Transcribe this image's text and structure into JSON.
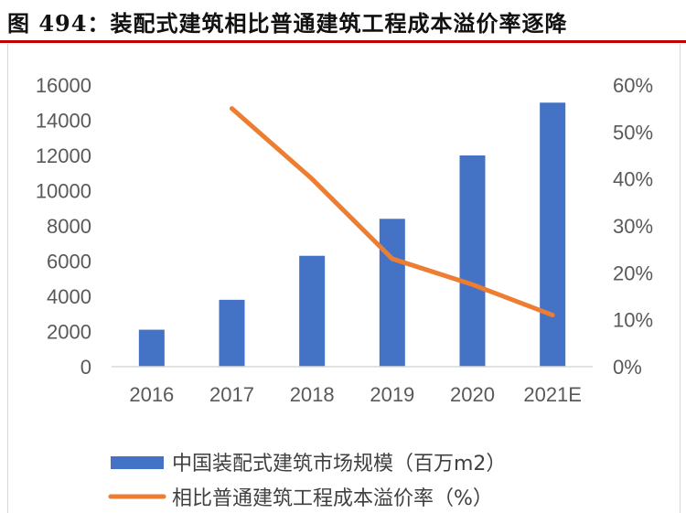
{
  "header": {
    "title": "图 494：装配式建筑相比普通建筑工程成本溢价率逐降",
    "rule_color": "#c00000"
  },
  "chart_data": {
    "type": "bar+line",
    "categories": [
      "2016",
      "2017",
      "2018",
      "2019",
      "2020",
      "2021E"
    ],
    "series": [
      {
        "name": "中国装配式建筑市场规模（百万m2）",
        "type": "bar",
        "axis": "left",
        "color": "#4472c4",
        "values": [
          2100,
          3800,
          6300,
          8400,
          12000,
          15000
        ]
      },
      {
        "name": "相比普通建筑工程成本溢价率（%）",
        "type": "line",
        "axis": "right",
        "color": "#ed7d31",
        "values": [
          null,
          55,
          40,
          23,
          17.5,
          11
        ]
      }
    ],
    "left_axis": {
      "min": 0,
      "max": 16000,
      "ticks": [
        "0",
        "2000",
        "4000",
        "6000",
        "8000",
        "10000",
        "12000",
        "14000",
        "16000"
      ]
    },
    "right_axis": {
      "min": 0,
      "max": 60,
      "ticks": [
        "0%",
        "10%",
        "20%",
        "30%",
        "40%",
        "50%",
        "60%"
      ]
    },
    "grid": false,
    "legend_position": "bottom-left"
  }
}
